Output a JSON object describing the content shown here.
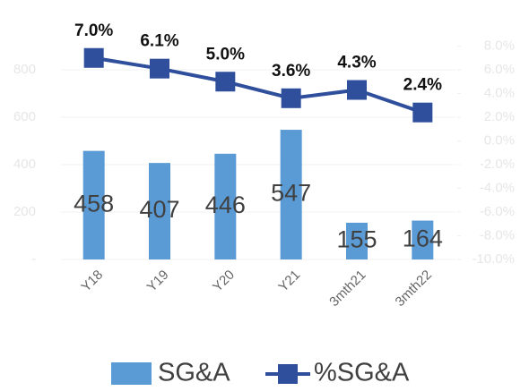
{
  "chart_data": {
    "type": "bar-line",
    "categories": [
      "Y18",
      "Y19",
      "Y20",
      "Y21",
      "3mth21",
      "3mth22"
    ],
    "series": [
      {
        "name": "SG&A",
        "type": "bar",
        "color": "#5b9bd5",
        "values": [
          458,
          407,
          446,
          547,
          155,
          164
        ]
      },
      {
        "name": "%SG&A",
        "type": "line",
        "axis": "y2",
        "color": "#2f4f9c",
        "values": [
          7.0,
          6.1,
          5.0,
          3.6,
          4.3,
          2.4
        ],
        "value_labels": [
          "7.0%",
          "6.1%",
          "5.0%",
          "3.6%",
          "4.3%",
          "2.4%"
        ]
      }
    ],
    "ylim": [
      0,
      900
    ],
    "yticks": [
      {
        "value": 0,
        "label": "-"
      },
      200,
      400,
      600,
      800
    ],
    "y2lim": [
      -10,
      8
    ],
    "y2ticks": [
      {
        "value": -10,
        "label": "-10.0%"
      },
      {
        "value": -8,
        "label": "-8.0%"
      },
      {
        "value": -6,
        "label": "-6.0%"
      },
      {
        "value": -4,
        "label": "-4.0%"
      },
      {
        "value": -2,
        "label": "-2.0%"
      },
      {
        "value": 0,
        "label": "0.0%"
      },
      {
        "value": 2,
        "label": "2.0%"
      },
      {
        "value": 4,
        "label": "4.0%"
      },
      {
        "value": 6,
        "label": "6.0%"
      },
      {
        "value": 8,
        "label": "8.0%"
      }
    ],
    "grid": true,
    "legend": "bottom"
  }
}
